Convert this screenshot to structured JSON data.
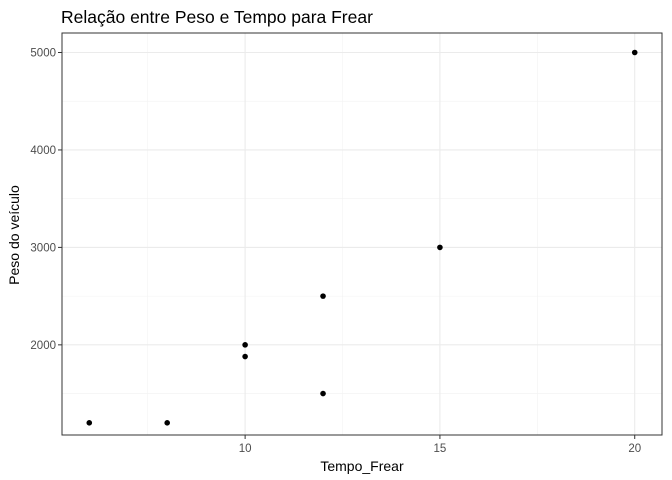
{
  "chart_data": {
    "type": "scatter",
    "title": "Relação entre Peso e Tempo para Frear",
    "xlabel": "Tempo_Frear",
    "ylabel": "Peso do veículo",
    "xlim": [
      5.3,
      20.7
    ],
    "ylim": [
      1075,
      5200
    ],
    "x_ticks": [
      10,
      15,
      20
    ],
    "y_ticks": [
      2000,
      3000,
      4000,
      5000
    ],
    "x_tick_labels": [
      "10",
      "15",
      "20"
    ],
    "y_tick_labels": [
      "2000",
      "3000",
      "4000",
      "5000"
    ],
    "grid": true,
    "point_color": "#000000",
    "points": [
      {
        "x": 6,
        "y": 1200
      },
      {
        "x": 8,
        "y": 1200
      },
      {
        "x": 10,
        "y": 1880
      },
      {
        "x": 10,
        "y": 2000
      },
      {
        "x": 12,
        "y": 1500
      },
      {
        "x": 12,
        "y": 2500
      },
      {
        "x": 15,
        "y": 3000
      },
      {
        "x": 20,
        "y": 5000
      }
    ]
  }
}
